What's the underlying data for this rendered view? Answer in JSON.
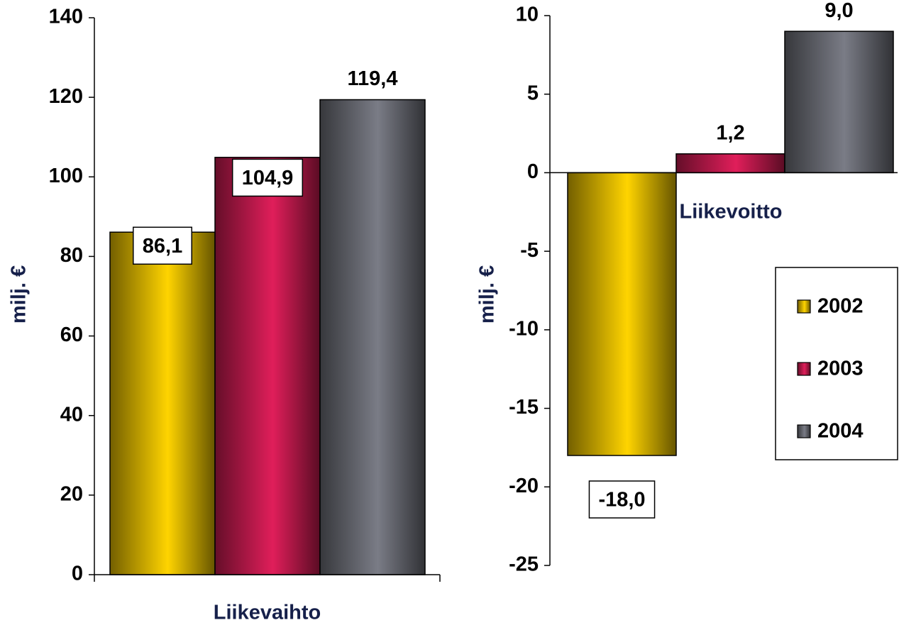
{
  "chart_data": [
    {
      "type": "bar",
      "categories": [
        "Liikevaihto"
      ],
      "y_label": "milj. €",
      "ylim": [
        0,
        140
      ],
      "yticks": [
        0,
        20,
        40,
        60,
        80,
        100,
        120,
        140
      ],
      "series": [
        {
          "color": "#ffd400",
          "values": [
            86.1
          ],
          "value_labels": [
            "86,1"
          ]
        },
        {
          "color": "#e01e5a",
          "values": [
            104.9
          ],
          "value_labels": [
            "104,9"
          ]
        },
        {
          "color": "#7a7c86",
          "values": [
            119.4
          ],
          "value_labels": [
            "119,4"
          ]
        }
      ]
    },
    {
      "type": "bar",
      "categories": [
        "Liikevoitto"
      ],
      "y_label": "milj. €",
      "ylim": [
        -25,
        10
      ],
      "yticks": [
        -25,
        -20,
        -15,
        -10,
        -5,
        0,
        5,
        10
      ],
      "legend": "right",
      "series": [
        {
          "name": "2002",
          "color": "#ffd400",
          "values": [
            -18.0
          ],
          "value_labels": [
            "-18,0"
          ]
        },
        {
          "name": "2003",
          "color": "#e01e5a",
          "values": [
            1.2
          ],
          "value_labels": [
            "1,2"
          ]
        },
        {
          "name": "2004",
          "color": "#7a7c86",
          "values": [
            9.0
          ],
          "value_labels": [
            "9,0"
          ]
        }
      ]
    }
  ]
}
